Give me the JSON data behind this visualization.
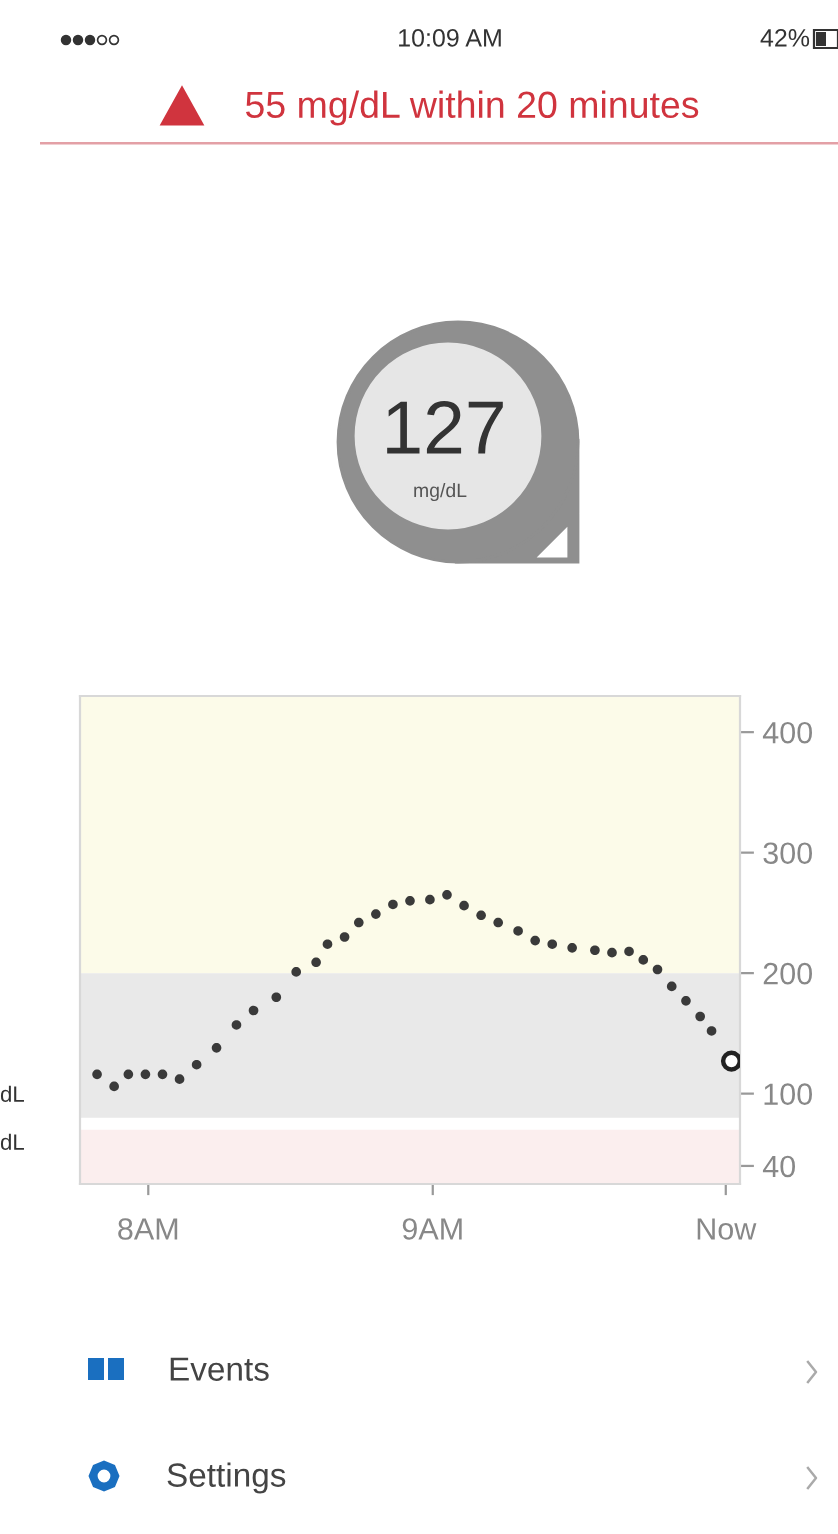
{
  "chart_data": {
    "type": "scatter",
    "x": [
      7.82,
      7.88,
      7.93,
      7.99,
      8.05,
      8.11,
      8.17,
      8.24,
      8.31,
      8.37,
      8.45,
      8.52,
      8.59,
      8.63,
      8.69,
      8.74,
      8.8,
      8.86,
      8.92,
      8.99,
      9.05,
      9.11,
      9.17,
      9.23,
      9.3,
      9.36,
      9.42,
      9.49,
      9.57,
      9.63,
      9.69,
      9.74,
      9.79,
      9.84,
      9.89,
      9.94,
      9.98
    ],
    "series": [
      {
        "color": "#3a3a3a",
        "marker": "circle",
        "values": [
          116,
          106,
          116,
          116,
          116,
          112,
          124,
          138,
          157,
          169,
          180,
          201,
          209,
          224,
          230,
          242,
          249,
          257,
          260,
          261,
          265,
          256,
          248,
          242,
          235,
          227,
          224,
          221,
          219,
          217,
          218,
          211,
          203,
          189,
          177,
          164,
          152
        ]
      },
      {
        "color": "#222222",
        "marker": "circle_open",
        "x": [
          10.05
        ],
        "values": [
          127
        ]
      }
    ],
    "xlim": [
      7.76,
      10.08
    ],
    "xticks": [
      {
        "value": 8,
        "label": "8AM"
      },
      {
        "value": 9,
        "label": "9AM"
      },
      {
        "value": 10.03,
        "label": "Now"
      }
    ],
    "ylim": [
      25,
      430
    ],
    "yticks": [
      40,
      100,
      200,
      300,
      400
    ],
    "bands": [
      {
        "axis": "y",
        "from": 200,
        "to": 430,
        "color": "#fcfbe9"
      },
      {
        "axis": "y",
        "from": 80,
        "to": 200,
        "color": "#e9e9e9"
      },
      {
        "axis": "y",
        "from": 25,
        "to": 70,
        "color": "#fbeeee"
      }
    ],
    "grid": false,
    "legend": false,
    "annotations": [
      "10:09 AM",
      "42%",
      "55 mg/dL within 20 minutes",
      "127",
      "mg/dL",
      "Events",
      "Settings",
      "dL",
      "dL"
    ]
  }
}
